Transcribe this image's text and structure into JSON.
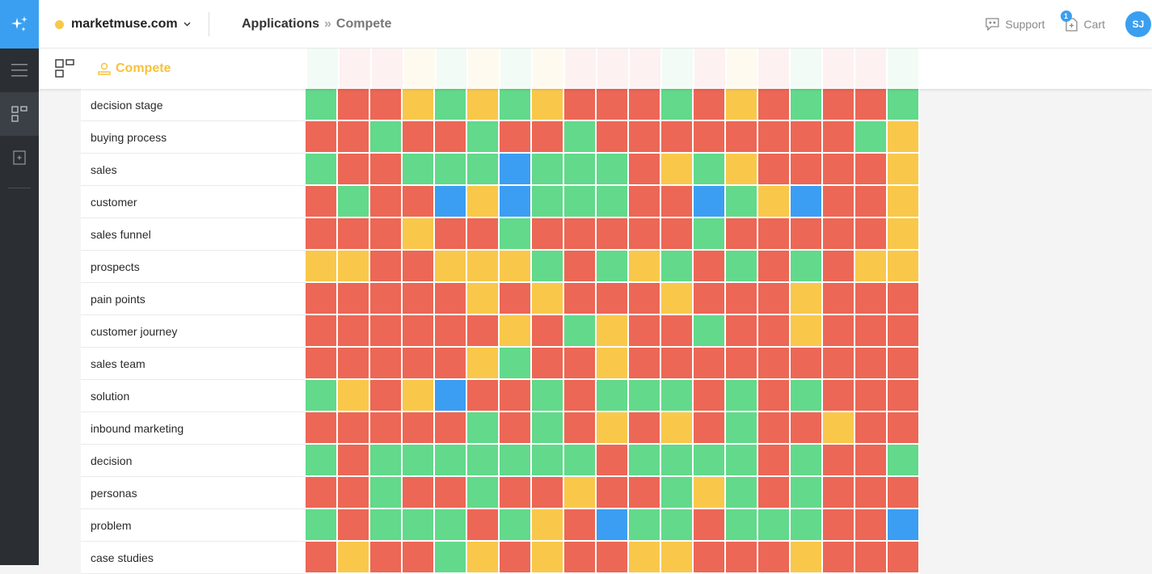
{
  "colors": {
    "red": "#ec6756",
    "green": "#62d98b",
    "yellow": "#f9c84b",
    "blue": "#3b9ef2"
  },
  "header": {
    "site": "marketmuse.com",
    "breadcrumb_app": "Applications",
    "breadcrumb_sep": "»",
    "breadcrumb_page": "Compete",
    "support": "Support",
    "cart": "Cart",
    "cart_count": "1",
    "avatar": "SJ"
  },
  "subheader": {
    "tab": "Compete"
  },
  "sidebar": {
    "icons": [
      "sparkles-logo-icon",
      "menu-icon",
      "apps-grid-icon",
      "add-page-icon"
    ]
  },
  "table": {
    "rows": [
      {
        "term": "decision stage",
        "cells": "GRRYGYGYRRRGRYRGRRG"
      },
      {
        "term": "buying process",
        "cells": "RRGRRGRRGRRRRRRRRGY"
      },
      {
        "term": "sales",
        "cells": "GRRGGGBGGGRYGYRRRRY"
      },
      {
        "term": "customer",
        "cells": "RGRRBYBGGGRRBGYBRRY"
      },
      {
        "term": "sales funnel",
        "cells": "RRRYRRGRRRRRGRRRRRY"
      },
      {
        "term": "prospects",
        "cells": "YYRRYYYGRGYGRGRGRYY"
      },
      {
        "term": "pain points",
        "cells": "RRRRRYRYRRRYRRRYRRR"
      },
      {
        "term": "customer journey",
        "cells": "RRRRRRYRGYRRGRRYRRR"
      },
      {
        "term": "sales team",
        "cells": "RRRRRYGRRYRRRRRRRRR"
      },
      {
        "term": "solution",
        "cells": "GYRYBRRGRGGGRGRGRRR"
      },
      {
        "term": "inbound marketing",
        "cells": "RRRRRGRGRYRYRGRRYRR"
      },
      {
        "term": "decision",
        "cells": "GRGGGGGGGRGGGGRGRRG"
      },
      {
        "term": "personas",
        "cells": "RRGRRGRRYRRGYGRGRRR"
      },
      {
        "term": "problem",
        "cells": "GRGGGRGYRBGGRGGGRRB"
      },
      {
        "term": "case studies",
        "cells": "RYRRGYRYRRYYRRRYRRR"
      }
    ]
  }
}
